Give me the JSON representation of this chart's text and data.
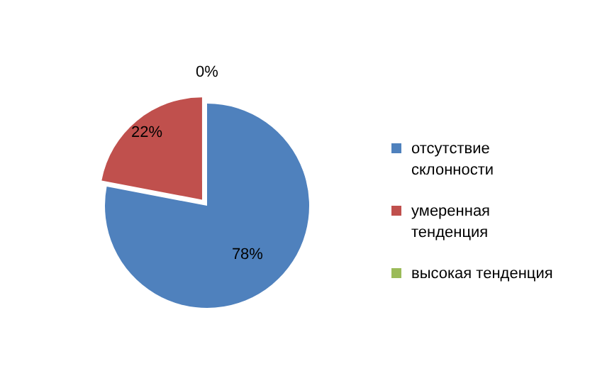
{
  "chart_data": {
    "type": "pie",
    "categories": [
      "отсутствие склонности",
      "умеренная тенденция",
      "высокая тенденция"
    ],
    "values": [
      78,
      22,
      0
    ],
    "colors": [
      "#4f81bd",
      "#c0504d",
      "#9bbb59"
    ],
    "value_labels": [
      "78%",
      "22%",
      "0%"
    ],
    "legend": "right"
  }
}
